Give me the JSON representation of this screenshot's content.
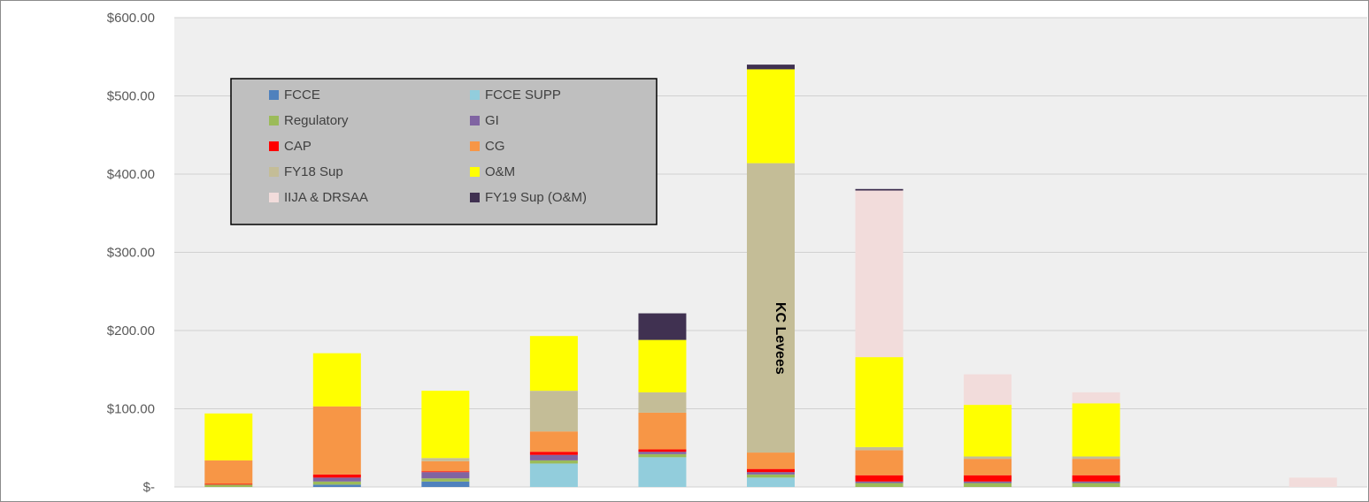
{
  "chart_data": {
    "type": "bar",
    "stacked": true,
    "categories": [
      "",
      "",
      "",
      "",
      "",
      "",
      "",
      "",
      "",
      "",
      ""
    ],
    "ylim": [
      0,
      600
    ],
    "ytick_values": [
      0,
      100,
      200,
      300,
      400,
      500,
      600
    ],
    "ytick_labels": [
      "$-",
      "$100.00",
      "$200.00",
      "$300.00",
      "$400.00",
      "$500.00",
      "$600.00"
    ],
    "grid": true,
    "plot_background": "#efefef",
    "legend_position": "top-left",
    "series": [
      {
        "name": "FCCE",
        "color": "#4f81bd",
        "values": [
          0,
          3,
          7,
          0,
          0,
          0,
          0,
          0,
          0,
          0,
          0
        ]
      },
      {
        "name": "FCCE SUPP",
        "color": "#92cddc",
        "values": [
          0,
          0,
          0,
          30,
          38,
          12,
          0,
          0,
          0,
          0,
          0
        ]
      },
      {
        "name": "Regulatory",
        "color": "#9bbb59",
        "values": [
          3,
          4,
          4,
          4,
          4,
          4,
          5,
          5,
          5,
          0,
          0
        ]
      },
      {
        "name": "GI",
        "color": "#8064a2",
        "values": [
          0,
          5,
          8,
          7,
          3,
          3,
          2,
          2,
          2,
          0,
          0
        ]
      },
      {
        "name": "CAP",
        "color": "#ff0000",
        "values": [
          1,
          4,
          1,
          4,
          3,
          4,
          8,
          8,
          8,
          0,
          0
        ]
      },
      {
        "name": "CG",
        "color": "#f79646",
        "values": [
          30,
          87,
          13,
          26,
          47,
          21,
          32,
          21,
          21,
          0,
          0
        ]
      },
      {
        "name": "FY18 Sup",
        "color": "#c4bd97",
        "values": [
          0,
          0,
          4,
          52,
          26,
          370,
          4,
          3,
          3,
          0,
          0
        ]
      },
      {
        "name": "O&M",
        "color": "#ffff00",
        "values": [
          60,
          68,
          86,
          70,
          67,
          120,
          115,
          66,
          68,
          0,
          0
        ]
      },
      {
        "name": "IIJA & DRSAA",
        "color": "#f2dcdb",
        "values": [
          0,
          0,
          0,
          0,
          0,
          0,
          213,
          39,
          14,
          0,
          12
        ]
      },
      {
        "name": "FY19 Sup (O&M)",
        "color": "#403151",
        "values": [
          0,
          0,
          0,
          0,
          34,
          6,
          2,
          0,
          0,
          0,
          0
        ]
      }
    ],
    "annotations": [
      {
        "text": "KC Levees",
        "category_index": 5
      }
    ]
  }
}
